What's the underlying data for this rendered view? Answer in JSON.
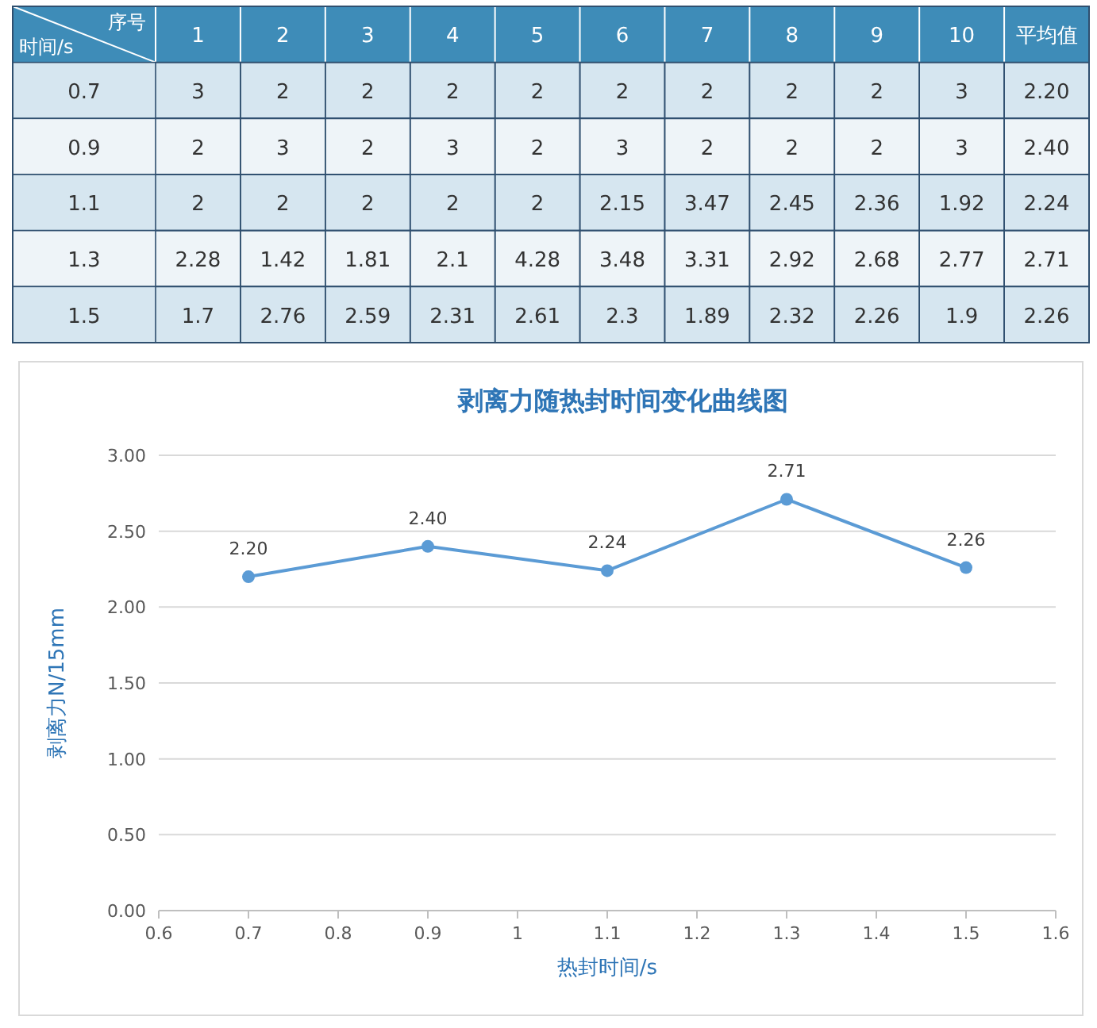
{
  "chart_data": [
    {
      "type": "heatmap",
      "xlabel": "序号",
      "ylabel": "时间/s",
      "categories": [
        "1",
        "2",
        "3",
        "4",
        "5",
        "6",
        "7",
        "8",
        "9",
        "10",
        "平均值"
      ],
      "y_categories": [
        "0.7",
        "0.9",
        "1.1",
        "1.3",
        "1.5"
      ],
      "cells": [
        [
          3,
          2,
          2,
          2,
          2,
          2,
          2,
          2,
          2,
          3,
          2.2
        ],
        [
          2,
          3,
          2,
          3,
          2,
          3,
          2,
          2,
          2,
          3,
          2.4
        ],
        [
          2,
          2,
          2,
          2,
          2,
          2.15,
          3.47,
          2.45,
          2.36,
          1.92,
          2.24
        ],
        [
          2.28,
          1.42,
          1.81,
          2.1,
          4.28,
          3.48,
          3.31,
          2.92,
          2.68,
          2.77,
          2.71
        ],
        [
          1.7,
          2.76,
          2.59,
          2.31,
          2.61,
          2.3,
          1.89,
          2.32,
          2.26,
          1.9,
          2.26
        ]
      ],
      "cell_labels": [
        [
          "3",
          "2",
          "2",
          "2",
          "2",
          "2",
          "2",
          "2",
          "2",
          "3",
          "2.20"
        ],
        [
          "2",
          "3",
          "2",
          "3",
          "2",
          "3",
          "2",
          "2",
          "2",
          "3",
          "2.40"
        ],
        [
          "2",
          "2",
          "2",
          "2",
          "2",
          "2.15",
          "3.47",
          "2.45",
          "2.36",
          "1.92",
          "2.24"
        ],
        [
          "2.28",
          "1.42",
          "1.81",
          "2.1",
          "4.28",
          "3.48",
          "3.31",
          "2.92",
          "2.68",
          "2.77",
          "2.71"
        ],
        [
          "1.7",
          "2.76",
          "2.59",
          "2.31",
          "2.61",
          "2.3",
          "1.89",
          "2.32",
          "2.26",
          "1.9",
          "2.26"
        ]
      ]
    },
    {
      "type": "line",
      "title": "剥离力随热封时间变化曲线图",
      "xlabel": "热封时间/s",
      "ylabel": "剥离力N/15mm",
      "x": [
        0.7,
        0.9,
        1.1,
        1.3,
        1.5
      ],
      "values": [
        2.2,
        2.4,
        2.24,
        2.71,
        2.26
      ],
      "value_labels": [
        "2.20",
        "2.40",
        "2.24",
        "2.71",
        "2.26"
      ],
      "color": "#5b9bd5",
      "marker": "circle",
      "grid": "y",
      "xlim": [
        0.6,
        1.6
      ],
      "xticks": [
        0.6,
        0.7,
        0.8,
        0.9,
        1,
        1.1,
        1.2,
        1.3,
        1.4,
        1.5,
        1.6
      ],
      "ylim": [
        0,
        3
      ],
      "yticks": [
        {
          "value": 0,
          "label": "0.00"
        },
        {
          "value": 0.5,
          "label": "0.50"
        },
        {
          "value": 1,
          "label": "1.00"
        },
        {
          "value": 1.5,
          "label": "1.50"
        },
        {
          "value": 2,
          "label": "2.00"
        },
        {
          "value": 2.5,
          "label": "2.50"
        },
        {
          "value": 3,
          "label": "3.00"
        }
      ]
    }
  ]
}
